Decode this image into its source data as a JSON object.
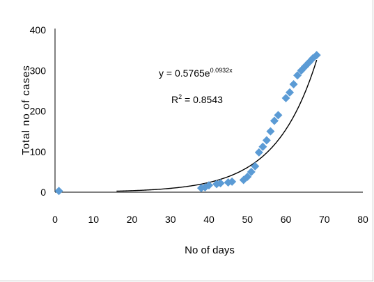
{
  "chart_data": {
    "type": "scatter",
    "xlabel": "No of days",
    "ylabel": "Total no of cases",
    "xlim": [
      0,
      80
    ],
    "ylim": [
      0,
      400
    ],
    "x_ticks": [
      "0",
      "10",
      "20",
      "30",
      "40",
      "50",
      "60",
      "70",
      "80"
    ],
    "y_ticks": [
      "0",
      "100",
      "200",
      "300",
      "400"
    ],
    "grid": false,
    "marker": "diamond",
    "marker_color": "#5B9BD5",
    "trendline_color": "#000000",
    "series": [
      {
        "x": [
          1,
          38,
          39,
          40,
          42,
          43,
          45,
          46,
          49,
          50,
          51,
          52,
          53,
          54,
          55,
          56,
          57,
          58,
          60,
          61,
          62,
          63,
          64,
          65,
          66,
          67,
          68
        ],
        "y": [
          3,
          10,
          12,
          17,
          20,
          22,
          24,
          26,
          30,
          38,
          50,
          64,
          98,
          112,
          128,
          150,
          176,
          190,
          232,
          246,
          266,
          288,
          300,
          310,
          320,
          330,
          338
        ]
      }
    ],
    "trendline": {
      "type": "exponential",
      "a": 0.5765,
      "b": 0.0932,
      "x_range": [
        16,
        68
      ],
      "equation": {
        "prefix": "y = 0.5765e",
        "exponent": "0.0932x"
      },
      "r_squared": {
        "prefix": "R",
        "power": "2",
        "value": " = 0.8543"
      }
    }
  }
}
